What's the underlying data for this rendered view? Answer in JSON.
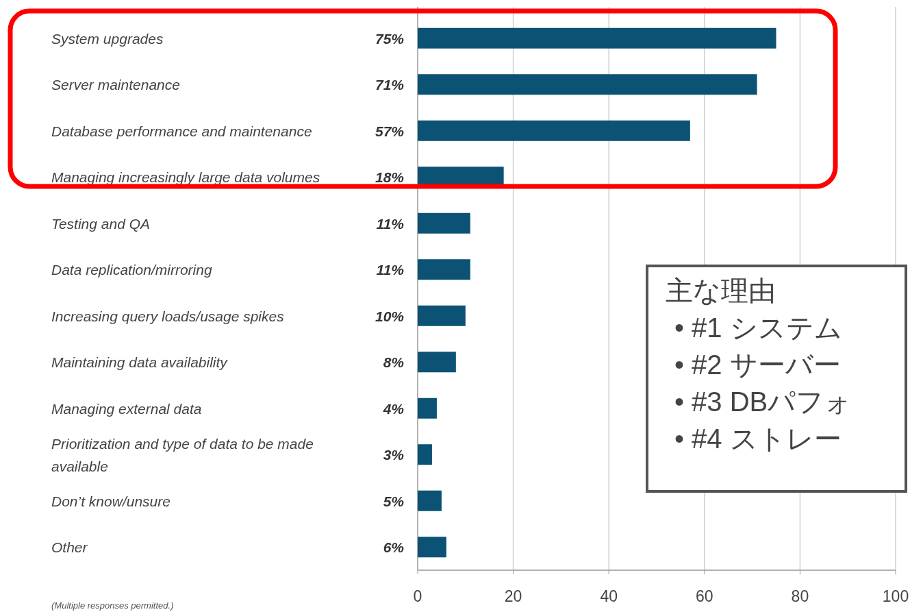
{
  "chart_data": {
    "type": "bar",
    "orientation": "horizontal",
    "categories": [
      "System upgrades",
      "Server maintenance",
      "Database performance and maintenance",
      "Managing increasingly large data volumes",
      "Testing and QA",
      "Data replication/mirroring",
      "Increasing query loads/usage spikes",
      "Maintaining data availability",
      "Managing external data",
      "Prioritization and type of data to be made available",
      "Don’t know/unsure",
      "Other"
    ],
    "values": [
      75,
      71,
      57,
      18,
      11,
      11,
      10,
      8,
      4,
      3,
      5,
      6
    ],
    "value_labels": [
      "75%",
      "71%",
      "57%",
      "18%",
      "11%",
      "11%",
      "10%",
      "8%",
      "4%",
      "3%",
      "5%",
      "6%"
    ],
    "color": "#0b5275",
    "xlim": [
      0,
      100
    ],
    "xticks": [
      0,
      20,
      40,
      60,
      80,
      100
    ],
    "grid": "x",
    "annotations": [
      "(Multiple responses permitted.)",
      "主な理由",
      "• #1 システム",
      "• #2 サーバー",
      "• #3 DBパフォ",
      "• #4 ストレー"
    ]
  }
}
